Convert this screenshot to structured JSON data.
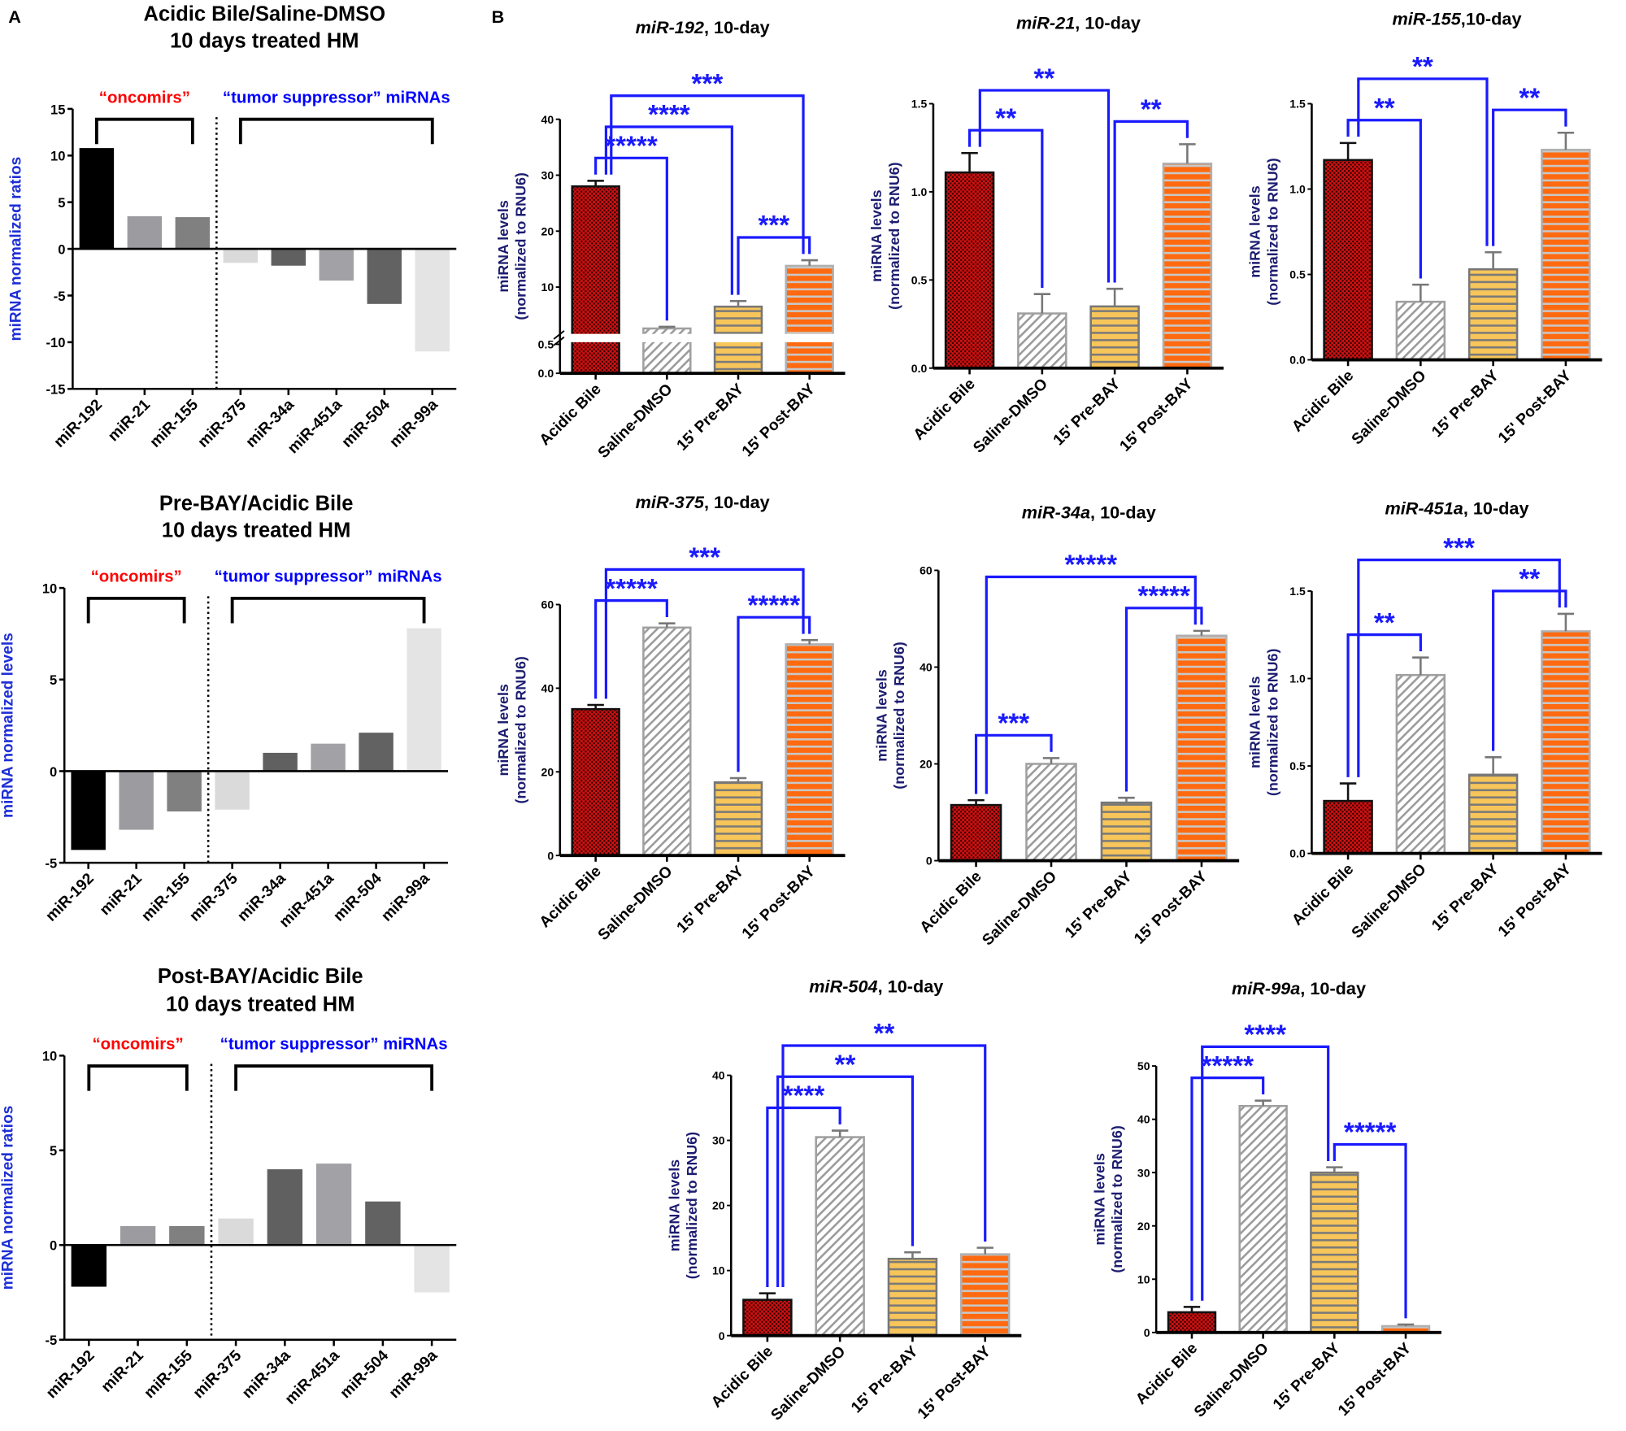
{
  "panel_labels": {
    "a": "A",
    "b": "B"
  },
  "chart_data": [
    {
      "type": "bar",
      "panel": "A",
      "title": [
        "Acidic Bile/Saline-DMSO",
        "10 days treated HM"
      ],
      "ylabel": "miRNA normalized ratios",
      "categories": [
        "miR-192",
        "miR-21",
        "miR-155",
        "miR-375",
        "miR-34a",
        "miR-451a",
        "miR-504",
        "miR-99a"
      ],
      "values": [
        10.8,
        3.5,
        3.4,
        -1.5,
        -1.8,
        -3.4,
        -5.9,
        -11.0
      ],
      "ylim": [
        -15,
        15
      ],
      "yticks": [
        "-15",
        "-10",
        "-5",
        "0",
        "5",
        "10",
        "15"
      ],
      "groups": [
        {
          "label": "“oncomirs”",
          "color": "#ff0000",
          "from": 0,
          "to": 2
        },
        {
          "label": "“tumor suppressor” miRNAs",
          "color": "#0000ff",
          "from": 3,
          "to": 7
        }
      ],
      "bar_colors": [
        "#000000",
        "#9c9ca0",
        "#808080",
        "#dadada",
        "#606060",
        "#a2a2a6",
        "#626262",
        "#e4e4e4"
      ]
    },
    {
      "type": "bar",
      "panel": "A",
      "title": [
        "Pre-BAY/Acidic Bile",
        "10 days treated HM"
      ],
      "ylabel": "miRNA normalized levels",
      "categories": [
        "miR-192",
        "miR-21",
        "miR-155",
        "miR-375",
        "miR-34a",
        "miR-451a",
        "miR-504",
        "miR-99a"
      ],
      "values": [
        -4.3,
        -3.2,
        -2.2,
        -2.1,
        1.0,
        1.5,
        2.1,
        7.8
      ],
      "ylim": [
        -5,
        10
      ],
      "yticks": [
        "-5",
        "0",
        "5",
        "10"
      ],
      "groups": [
        {
          "label": "“oncomirs”",
          "color": "#ff0000",
          "from": 0,
          "to": 2
        },
        {
          "label": "“tumor suppressor” miRNAs",
          "color": "#0000ff",
          "from": 3,
          "to": 7
        }
      ],
      "bar_colors": [
        "#000000",
        "#9c9ca0",
        "#808080",
        "#dadada",
        "#606060",
        "#a2a2a6",
        "#626262",
        "#e4e4e4"
      ]
    },
    {
      "type": "bar",
      "panel": "A",
      "title": [
        "Post-BAY/Acidic Bile",
        "10 days treated HM"
      ],
      "ylabel": "miRNA normalized ratios",
      "categories": [
        "miR-192",
        "miR-21",
        "miR-155",
        "miR-375",
        "miR-34a",
        "miR-451a",
        "miR-504",
        "miR-99a"
      ],
      "values": [
        -2.2,
        1.0,
        1.0,
        1.4,
        4.0,
        4.3,
        2.3,
        -2.5
      ],
      "ylim": [
        -5,
        10
      ],
      "yticks": [
        "-5",
        "0",
        "5",
        "10"
      ],
      "groups": [
        {
          "label": "“oncomirs”",
          "color": "#ff0000",
          "from": 0,
          "to": 2
        },
        {
          "label": "“tumor suppressor” miRNAs",
          "color": "#0000ff",
          "from": 3,
          "to": 7
        }
      ],
      "bar_colors": [
        "#000000",
        "#9c9ca0",
        "#808080",
        "#dadada",
        "#606060",
        "#a2a2a6",
        "#626262",
        "#e4e4e4"
      ]
    },
    {
      "type": "bar",
      "panel": "B",
      "title_mirna": "miR-192",
      "title_rest": ", 10-day",
      "ylabel": [
        "miRNA levels",
        "(normalized to RNU6)"
      ],
      "categories": [
        "Acidic Bile",
        "Saline-DMSO",
        "15' Pre-BAY",
        "15' Post-BAY"
      ],
      "values": [
        28.0,
        2.6,
        6.5,
        13.8
      ],
      "errors": [
        1.0,
        0.3,
        1.0,
        1.0
      ],
      "ylim": [
        0,
        40
      ],
      "axis_break": [
        0.5,
        2
      ],
      "yticks": [
        "0.0",
        "0.5",
        "10",
        "20",
        "30",
        "40"
      ],
      "significance": [
        {
          "pair": [
            0,
            1
          ],
          "label": "*****"
        },
        {
          "pair": [
            2,
            3
          ],
          "label": "***"
        },
        {
          "pair": [
            0,
            2
          ],
          "label": "****"
        },
        {
          "pair": [
            0,
            3
          ],
          "label": "***"
        }
      ]
    },
    {
      "type": "bar",
      "panel": "B",
      "title_mirna": "miR-21",
      "title_rest": ", 10-day",
      "ylabel": [
        "miRNA levels",
        "(normalized to RNU6)"
      ],
      "categories": [
        "Acidic Bile",
        "Saline-DMSO",
        "15' Pre-BAY",
        "15' Post-BAY"
      ],
      "values": [
        1.11,
        0.31,
        0.35,
        1.16
      ],
      "errors": [
        0.11,
        0.11,
        0.1,
        0.11
      ],
      "ylim": [
        0,
        1.5
      ],
      "yticks": [
        "0.0",
        "0.5",
        "1.0",
        "1.5"
      ],
      "significance": [
        {
          "pair": [
            0,
            1
          ],
          "label": "**"
        },
        {
          "pair": [
            0,
            2
          ],
          "label": "**"
        },
        {
          "pair": [
            2,
            3
          ],
          "label": "**"
        }
      ]
    },
    {
      "type": "bar",
      "panel": "B",
      "title_mirna": "miR-155",
      "title_rest": ",10-day",
      "ylabel": [
        "miRNA levels",
        "(normalized to RNU6)"
      ],
      "categories": [
        "Acidic Bile",
        "Saline-DMSO",
        "15' Pre-BAY",
        "15' Post-BAY"
      ],
      "values": [
        1.17,
        0.34,
        0.53,
        1.23
      ],
      "errors": [
        0.1,
        0.1,
        0.1,
        0.1
      ],
      "ylim": [
        0,
        1.5
      ],
      "yticks": [
        "0.0",
        "0.5",
        "1.0",
        "1.5"
      ],
      "significance": [
        {
          "pair": [
            0,
            1
          ],
          "label": "**"
        },
        {
          "pair": [
            0,
            2
          ],
          "label": "**"
        },
        {
          "pair": [
            2,
            3
          ],
          "label": "**"
        }
      ]
    },
    {
      "type": "bar",
      "panel": "B",
      "title_mirna": "miR-375",
      "title_rest": ", 10-day",
      "ylabel": [
        "miRNA levels",
        "(normalized to RNU6)"
      ],
      "categories": [
        "Acidic Bile",
        "Saline-DMSO",
        "15' Pre-BAY",
        "15' Post-BAY"
      ],
      "values": [
        35.0,
        54.5,
        17.5,
        50.5
      ],
      "errors": [
        1.0,
        1.0,
        1.0,
        1.0
      ],
      "ylim": [
        0,
        60
      ],
      "yticks": [
        "0",
        "20",
        "40",
        "60"
      ],
      "significance": [
        {
          "pair": [
            0,
            1
          ],
          "label": "*****"
        },
        {
          "pair": [
            2,
            3
          ],
          "label": "*****"
        },
        {
          "pair": [
            0,
            3
          ],
          "label": "***"
        }
      ]
    },
    {
      "type": "bar",
      "panel": "B",
      "title_mirna": "miR-34a",
      "title_rest": ", 10-day",
      "ylabel": [
        "miRNA levels",
        "(normalized to RNU6)"
      ],
      "categories": [
        "Acidic Bile",
        "Saline-DMSO",
        "15' Pre-BAY",
        "15' Post-BAY"
      ],
      "values": [
        11.5,
        20.0,
        12.0,
        46.5
      ],
      "errors": [
        1.0,
        1.2,
        1.0,
        1.0
      ],
      "ylim": [
        0,
        60
      ],
      "yticks": [
        "0",
        "20",
        "40",
        "60"
      ],
      "significance": [
        {
          "pair": [
            0,
            1
          ],
          "label": "***"
        },
        {
          "pair": [
            2,
            3
          ],
          "label": "*****"
        },
        {
          "pair": [
            0,
            3
          ],
          "label": "*****"
        }
      ]
    },
    {
      "type": "bar",
      "panel": "B",
      "title_mirna": "miR-451a",
      "title_rest": ", 10-day",
      "ylabel": [
        "miRNA levels",
        "(normalized to RNU6)"
      ],
      "categories": [
        "Acidic Bile",
        "Saline-DMSO",
        "15' Pre-BAY",
        "15' Post-BAY"
      ],
      "values": [
        0.3,
        1.02,
        0.45,
        1.27
      ],
      "errors": [
        0.1,
        0.1,
        0.1,
        0.1
      ],
      "ylim": [
        0,
        1.5
      ],
      "yticks": [
        "0.0",
        "0.5",
        "1.0",
        "1.5"
      ],
      "significance": [
        {
          "pair": [
            0,
            1
          ],
          "label": "**"
        },
        {
          "pair": [
            2,
            3
          ],
          "label": "**"
        },
        {
          "pair": [
            0,
            3
          ],
          "label": "***"
        }
      ]
    },
    {
      "type": "bar",
      "panel": "B",
      "title_mirna": "miR-504",
      "title_rest": ", 10-day",
      "ylabel": [
        "miRNA levels",
        "(normalized to RNU6)"
      ],
      "categories": [
        "Acidic Bile",
        "Saline-DMSO",
        "15' Pre-BAY",
        "15' Post-BAY"
      ],
      "values": [
        5.5,
        30.5,
        11.8,
        12.5
      ],
      "errors": [
        1.0,
        1.0,
        1.0,
        1.0
      ],
      "ylim": [
        0,
        40
      ],
      "yticks": [
        "0",
        "10",
        "20",
        "30",
        "40"
      ],
      "significance": [
        {
          "pair": [
            0,
            1
          ],
          "label": "****"
        },
        {
          "pair": [
            0,
            2
          ],
          "label": "**"
        },
        {
          "pair": [
            0,
            3
          ],
          "label": "**"
        }
      ]
    },
    {
      "type": "bar",
      "panel": "B",
      "title_mirna": "miR-99a",
      "title_rest": ", 10-day",
      "ylabel": [
        "miRNA levels",
        "(normalized to RNU6)"
      ],
      "categories": [
        "Acidic Bile",
        "Saline-DMSO",
        "15' Pre-BAY",
        "15' Post-BAY"
      ],
      "values": [
        3.8,
        42.5,
        30.0,
        1.2
      ],
      "errors": [
        1.0,
        1.0,
        1.0,
        0.3
      ],
      "ylim": [
        0,
        50
      ],
      "yticks": [
        "0",
        "10",
        "20",
        "30",
        "40",
        "50"
      ],
      "significance": [
        {
          "pair": [
            0,
            1
          ],
          "label": "*****"
        },
        {
          "pair": [
            0,
            2
          ],
          "label": "****"
        },
        {
          "pair": [
            2,
            3
          ],
          "label": "*****"
        }
      ]
    }
  ],
  "colors": {
    "significance": "#1a1aff",
    "ylabel_a": "#1f2fd6",
    "ylabel_b": "#1c1c70",
    "acidic_bile": "#d01010",
    "saline_dmso": "#ffffff",
    "pre_bay": "#f7c55a",
    "post_bay": "#ff6a10"
  }
}
